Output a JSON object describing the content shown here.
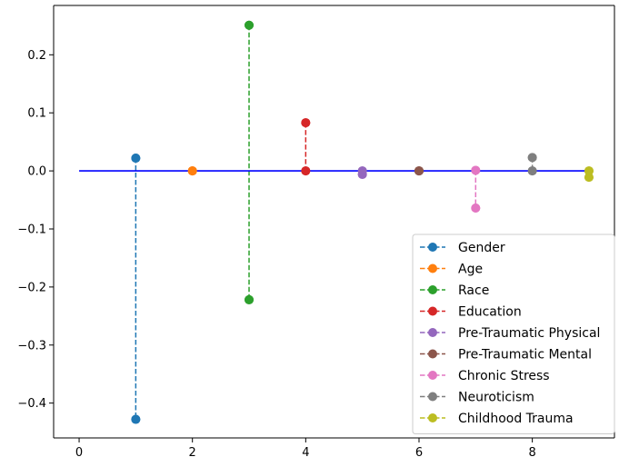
{
  "chart_data": {
    "type": "line",
    "title": "",
    "xlabel": "",
    "ylabel": "",
    "xlim": [
      -0.45,
      9.45
    ],
    "ylim": [
      -0.46,
      0.285
    ],
    "x_ticks": [
      0,
      2,
      4,
      6,
      8
    ],
    "x_tick_labels": [
      "0",
      "2",
      "4",
      "6",
      "8"
    ],
    "y_ticks": [
      -0.4,
      -0.3,
      -0.2,
      -0.1,
      0.0,
      0.1,
      0.2
    ],
    "y_tick_labels": [
      "−0.4",
      "−0.3",
      "−0.2",
      "−0.1",
      "0.0",
      "0.1",
      "0.2"
    ],
    "grid": false,
    "baseline": {
      "x": [
        0,
        9
      ],
      "y": 0,
      "color": "#0000ff"
    },
    "legend": {
      "position": "lower-right"
    },
    "series": [
      {
        "name": "Gender",
        "color": "#1f77b4",
        "x": 1,
        "y": [
          0.022,
          -0.428
        ]
      },
      {
        "name": "Age",
        "color": "#ff7f0e",
        "x": 2,
        "y": [
          0.0,
          0.0
        ]
      },
      {
        "name": "Race",
        "color": "#2ca02c",
        "x": 3,
        "y": [
          0.251,
          -0.222
        ]
      },
      {
        "name": "Education",
        "color": "#d62728",
        "x": 4,
        "y": [
          0.083,
          0.0
        ]
      },
      {
        "name": "Pre-Traumatic Physical",
        "color": "#9467bd",
        "x": 5,
        "y": [
          0.0,
          -0.006
        ]
      },
      {
        "name": "Pre-Traumatic Mental",
        "color": "#8c564b",
        "x": 6,
        "y": [
          0.0,
          0.0
        ]
      },
      {
        "name": "Chronic Stress",
        "color": "#e377c2",
        "x": 7,
        "y": [
          0.001,
          -0.064
        ]
      },
      {
        "name": "Neuroticism",
        "color": "#7f7f7f",
        "x": 8,
        "y": [
          0.023,
          0.0
        ]
      },
      {
        "name": "Childhood Trauma",
        "color": "#bcbd22",
        "x": 9,
        "y": [
          0.0,
          -0.011
        ]
      }
    ]
  }
}
